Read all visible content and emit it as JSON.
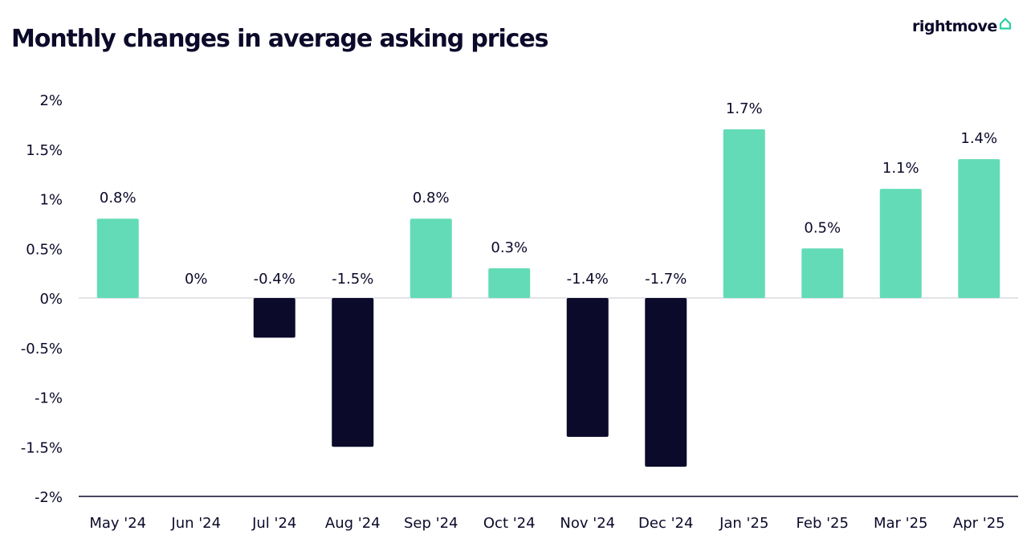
{
  "header": {
    "title": "Monthly changes in average asking prices",
    "brand": "rightmove",
    "brand_icon": "house-icon"
  },
  "colors": {
    "positive": "#63dbb6",
    "negative": "#0b0a2a",
    "text": "#0b0a2a",
    "axis": "#0b0a2a",
    "logo_accent": "#26d0a0"
  },
  "chart_data": {
    "type": "bar",
    "title": "Monthly changes in average asking prices",
    "xlabel": "",
    "ylabel": "",
    "ylim": [
      -2,
      2
    ],
    "grid": false,
    "legend": "none",
    "categories": [
      "May '24",
      "Jun '24",
      "Jul '24",
      "Aug '24",
      "Sep '24",
      "Oct '24",
      "Nov '24",
      "Dec '24",
      "Jan '25",
      "Feb '25",
      "Mar '25",
      "Apr '25"
    ],
    "values": [
      0.8,
      0,
      -0.4,
      -1.5,
      0.8,
      0.3,
      -1.4,
      -1.7,
      1.7,
      0.5,
      1.1,
      1.4
    ],
    "data_labels": [
      "0.8%",
      "0%",
      "-0.4%",
      "-1.5%",
      "0.8%",
      "0.3%",
      "-1.4%",
      "-1.7%",
      "1.7%",
      "0.5%",
      "1.1%",
      "1.4%"
    ],
    "y_ticks": [
      2,
      1.5,
      1,
      0.5,
      0,
      -0.5,
      -1,
      -1.5,
      -2
    ],
    "y_tick_labels": [
      "2%",
      "1.5%",
      "1%",
      "0.5%",
      "0%",
      "-0.5%",
      "-1%",
      "-1.5%",
      "-2%"
    ]
  }
}
